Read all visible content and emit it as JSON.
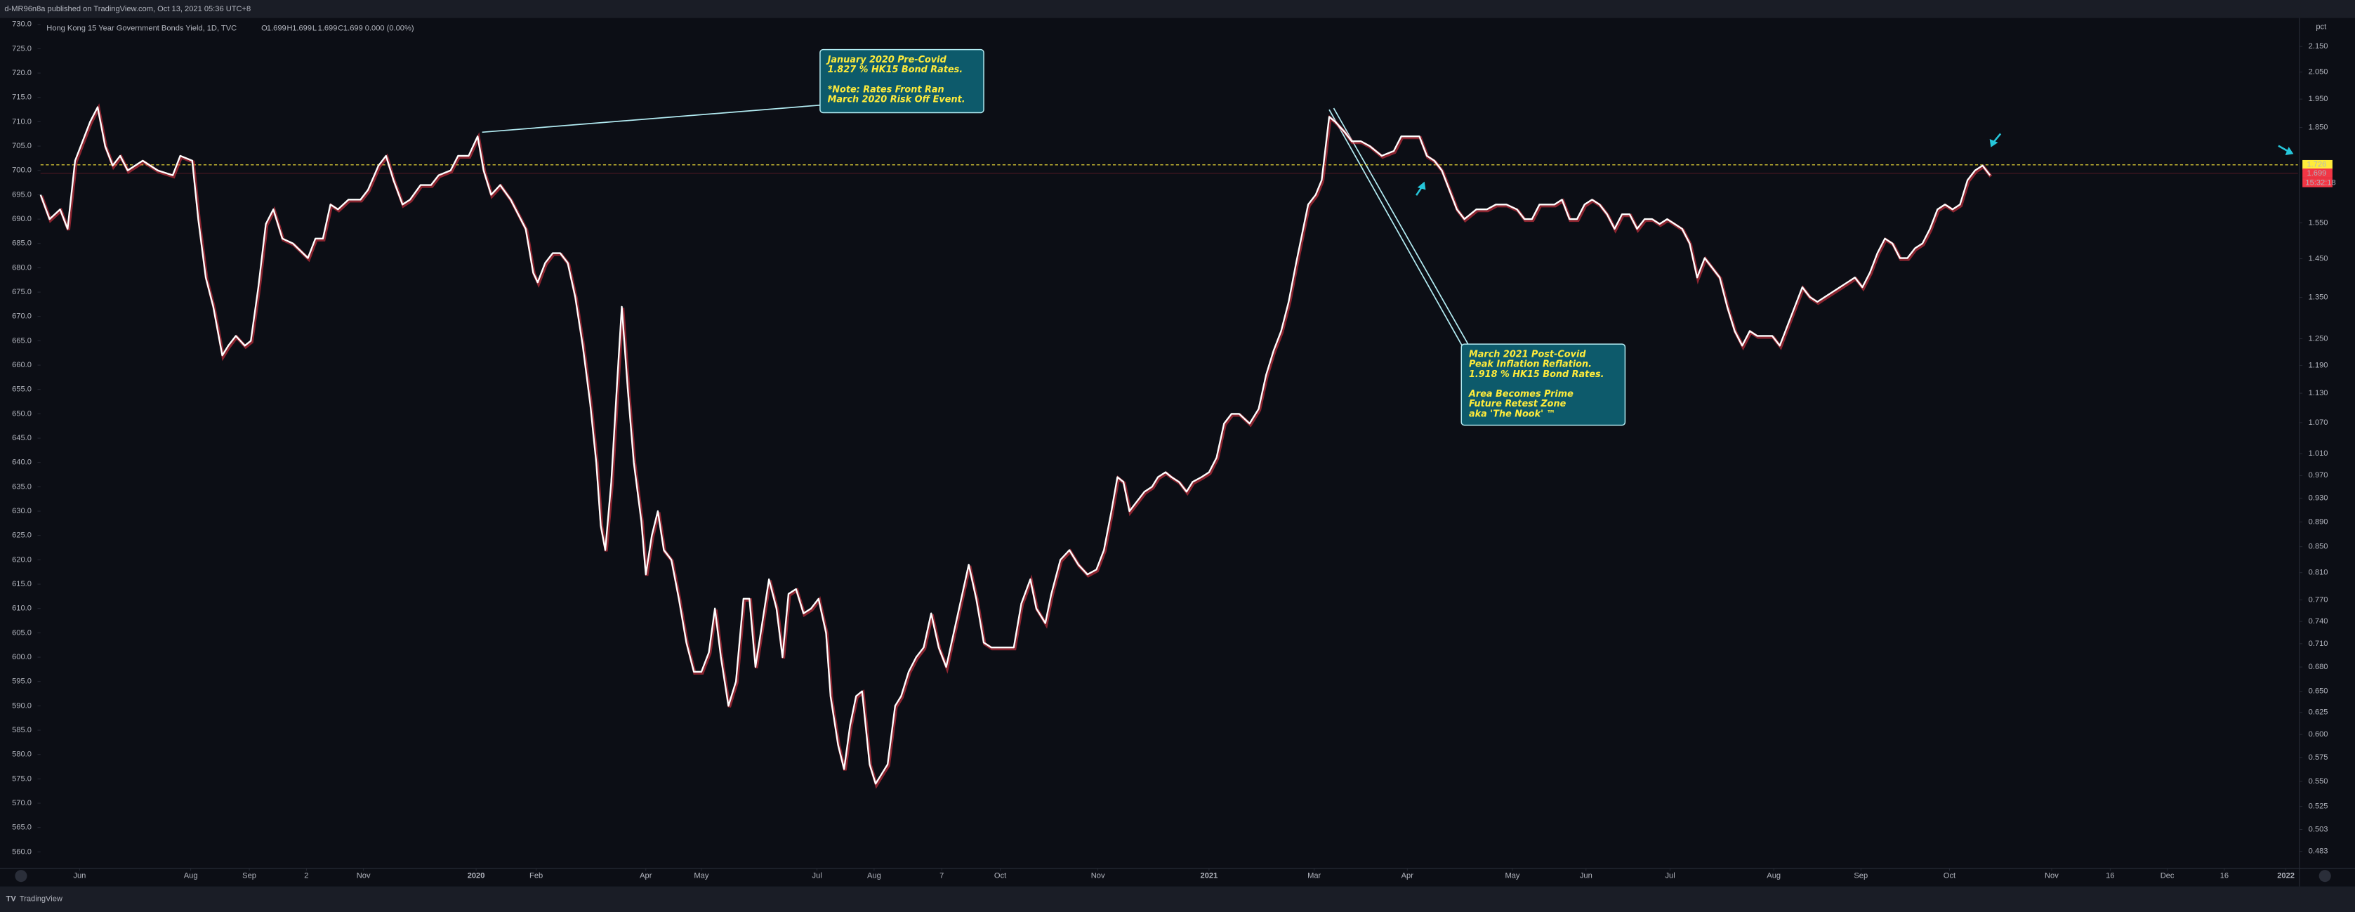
{
  "published": "d-MR96n8a published on TradingView.com, Oct 13, 2021 05:36 UTC+8",
  "footer": "TradingView",
  "chart_data": {
    "type": "line",
    "title": "Hong Kong 15 Year Government Bonds Yield, 1D, TVC",
    "ohlc": [
      {
        "label": "O",
        "value": 1.699
      },
      {
        "label": "H",
        "value": 1.699
      },
      {
        "label": "L",
        "value": 1.699
      },
      {
        "label": "C",
        "value": 1.699
      }
    ],
    "change": "0.000 (0.00%)",
    "color": "#ffffff",
    "x": [
      0,
      6,
      13,
      18,
      23,
      28,
      33,
      38,
      43,
      48,
      53,
      58,
      68,
      78,
      88,
      93,
      101,
      105,
      110,
      115,
      121,
      125,
      130,
      136,
      140,
      145,
      150,
      155,
      161,
      168,
      178,
      183,
      188,
      193,
      198,
      205,
      213,
      218,
      225,
      230,
      235,
      241,
      246,
      253,
      260,
      265,
      273,
      278,
      285,
      291,
      295,
      300,
      306,
      313,
      318,
      323,
      328,
      331,
      336,
      341,
      346,
      351,
      356,
      361,
      366,
      370,
      373,
      376,
      380,
      384,
      387,
      391,
      395,
      400,
      403,
      407,
      411,
      415,
      420,
      425,
      430,
      435,
      440,
      445,
      449,
      453,
      458,
      463,
      468,
      472,
      476,
      480,
      485,
      490,
      494,
      498,
      503,
      508,
      513,
      518,
      523,
      526,
      531,
      535,
      539,
      543,
      547,
      552,
      556,
      560,
      564,
      569,
      573,
      578,
      583,
      588,
      593,
      598,
      603,
      608,
      613,
      618,
      623,
      628,
      633,
      641,
      648,
      653,
      659,
      663,
      669,
      673,
      679,
      685,
      691,
      697,
      703,
      708,
      713,
      717,
      721,
      725,
      730,
      735,
      740,
      744,
      749,
      753,
      758,
      763,
      767,
      773,
      778,
      783,
      788,
      793,
      798,
      805,
      811,
      816,
      821,
      826,
      831,
      836,
      840,
      844,
      849,
      853,
      858,
      862,
      868,
      873,
      879,
      885,
      893,
      901,
      906,
      913,
      918,
      923,
      928,
      933,
      938,
      943,
      948,
      956,
      963,
      969,
      976,
      983,
      988,
      993,
      998,
      1003,
      1008,
      1013,
      1018,
      1023,
      1028,
      1033,
      1038,
      1043,
      1048,
      1053,
      1058,
      1063,
      1068,
      1073,
      1078,
      1083,
      1088,
      1093,
      1098,
      1103,
      1108,
      1113,
      1118,
      1123,
      1128,
      1133,
      1138,
      1143,
      1148,
      1153,
      1158,
      1163,
      1168,
      1173,
      1178,
      1183,
      1188,
      1193,
      1198,
      1203,
      1208,
      1213,
      1218,
      1223,
      1228,
      1233,
      1238,
      1243,
      1248,
      1253,
      1258,
      1263,
      1268,
      1273,
      1278,
      1283,
      1288,
      1293,
      1298
    ],
    "values": [
      695,
      690,
      692,
      688,
      702,
      706,
      710,
      713,
      705,
      701,
      703,
      700,
      702,
      700,
      699,
      703,
      702,
      690,
      678,
      672,
      662,
      664,
      666,
      664,
      665,
      676,
      689,
      692,
      686,
      685,
      682,
      686,
      686,
      693,
      692,
      694,
      694,
      696,
      701,
      703,
      698,
      693,
      694,
      697,
      697,
      699,
      700,
      703,
      703,
      707,
      700,
      695,
      697,
      694,
      691,
      688,
      679,
      677,
      681,
      683,
      683,
      681,
      674,
      664,
      652,
      640,
      627,
      622,
      636,
      657,
      672,
      655,
      640,
      628,
      617,
      625,
      630,
      622,
      620,
      612,
      603,
      597,
      597,
      601,
      610,
      600,
      590,
      595,
      612,
      612,
      598,
      606,
      616,
      610,
      600,
      613,
      614,
      609,
      610,
      612,
      605,
      592,
      582,
      577,
      586,
      592,
      593,
      578,
      574,
      576,
      578,
      590,
      592,
      597,
      600,
      602,
      609,
      602,
      598,
      605,
      612,
      619,
      612,
      603,
      602,
      602,
      602,
      611,
      616,
      610,
      607,
      613,
      620,
      622,
      619,
      617,
      618,
      622,
      630,
      637,
      636,
      630,
      632,
      634,
      635,
      637,
      638,
      637,
      636,
      634,
      636,
      637,
      638,
      641,
      648,
      650,
      650,
      648,
      651,
      658,
      663,
      667,
      673,
      681,
      687,
      693,
      695,
      698,
      711,
      710,
      708,
      706,
      706,
      705,
      703,
      704,
      707,
      707,
      707,
      703,
      702,
      700,
      696,
      692,
      690,
      692,
      692,
      693,
      693,
      692,
      690,
      690,
      693,
      693,
      693,
      694,
      690,
      690,
      693,
      694,
      693,
      691,
      688,
      691,
      691,
      688,
      690,
      690,
      689,
      690,
      689,
      688,
      685,
      678,
      682,
      680,
      678,
      672,
      667,
      664,
      667,
      666,
      666,
      666,
      664,
      668,
      672,
      676,
      674,
      673,
      674,
      675,
      676,
      677,
      678,
      676,
      679,
      683,
      686,
      685,
      682,
      682,
      684,
      685,
      688,
      692,
      693,
      692,
      693,
      698,
      700,
      701,
      699
    ],
    "xlim": [
      0,
      1503
    ],
    "xticks": [
      {
        "value": 26,
        "label": "Jun"
      },
      {
        "value": 100,
        "label": "Aug"
      },
      {
        "value": 139,
        "label": "Sep"
      },
      {
        "value": 177,
        "label": "2"
      },
      {
        "value": 215,
        "label": "Nov"
      },
      {
        "value": 290,
        "label": "2020"
      },
      {
        "value": 330,
        "label": "Feb"
      },
      {
        "value": 403,
        "label": "Apr"
      },
      {
        "value": 440,
        "label": "May"
      },
      {
        "value": 517,
        "label": "Jul"
      },
      {
        "value": 555,
        "label": "Aug"
      },
      {
        "value": 600,
        "label": "7"
      },
      {
        "value": 639,
        "label": "Oct"
      },
      {
        "value": 704,
        "label": "Nov"
      },
      {
        "value": 778,
        "label": "2021"
      },
      {
        "value": 848,
        "label": "Mar"
      },
      {
        "value": 910,
        "label": "Apr"
      },
      {
        "value": 980,
        "label": "May"
      },
      {
        "value": 1029,
        "label": "Jun"
      },
      {
        "value": 1085,
        "label": "Jul"
      },
      {
        "value": 1154,
        "label": "Aug"
      },
      {
        "value": 1212,
        "label": "Sep"
      },
      {
        "value": 1271,
        "label": "Oct"
      },
      {
        "value": 1339,
        "label": "Nov"
      },
      {
        "value": 1378,
        "label": "16"
      },
      {
        "value": 1416,
        "label": "Dec"
      },
      {
        "value": 1454,
        "label": "16"
      },
      {
        "value": 1495,
        "label": "2022"
      }
    ],
    "ylim": [
      556.6,
      731
    ],
    "yticks": [
      {
        "value": 730,
        "label": "730.0"
      },
      {
        "value": 725,
        "label": "725.0"
      },
      {
        "value": 720,
        "label": "720.0"
      },
      {
        "value": 715,
        "label": "715.0"
      },
      {
        "value": 710,
        "label": "710.0"
      },
      {
        "value": 705,
        "label": "705.0"
      },
      {
        "value": 700,
        "label": "700.0"
      },
      {
        "value": 695,
        "label": "695.0"
      },
      {
        "value": 690,
        "label": "690.0"
      },
      {
        "value": 685,
        "label": "685.0"
      },
      {
        "value": 680,
        "label": "680.0"
      },
      {
        "value": 675,
        "label": "675.0"
      },
      {
        "value": 670,
        "label": "670.0"
      },
      {
        "value": 665,
        "label": "665.0"
      },
      {
        "value": 660,
        "label": "660.0"
      },
      {
        "value": 655,
        "label": "655.0"
      },
      {
        "value": 650,
        "label": "650.0"
      },
      {
        "value": 645,
        "label": "645.0"
      },
      {
        "value": 640,
        "label": "640.0"
      },
      {
        "value": 635,
        "label": "635.0"
      },
      {
        "value": 630,
        "label": "630.0"
      },
      {
        "value": 625,
        "label": "625.0"
      },
      {
        "value": 620,
        "label": "620.0"
      },
      {
        "value": 615,
        "label": "615.0"
      },
      {
        "value": 610,
        "label": "610.0"
      },
      {
        "value": 605,
        "label": "605.0"
      },
      {
        "value": 600,
        "label": "600.0"
      },
      {
        "value": 595,
        "label": "595.0"
      },
      {
        "value": 590,
        "label": "590.0"
      },
      {
        "value": 585,
        "label": "585.0"
      },
      {
        "value": 580,
        "label": "580.0"
      },
      {
        "value": 575,
        "label": "575.0"
      },
      {
        "value": 570,
        "label": "570.0"
      },
      {
        "value": 565,
        "label": "565.0"
      },
      {
        "value": 560,
        "label": "560.0"
      }
    ],
    "y2label": "pct",
    "y2log": true,
    "y2lim": [
      0.468,
      2.26
    ],
    "y2ticks": [
      {
        "value": 2.15,
        "label": "2.150"
      },
      {
        "value": 2.05,
        "label": "2.050"
      },
      {
        "value": 1.95,
        "label": "1.950"
      },
      {
        "value": 1.85,
        "label": "1.850"
      },
      {
        "value": 1.55,
        "label": "1.550"
      },
      {
        "value": 1.45,
        "label": "1.450"
      },
      {
        "value": 1.35,
        "label": "1.350"
      },
      {
        "value": 1.25,
        "label": "1.250"
      },
      {
        "value": 1.19,
        "label": "1.190"
      },
      {
        "value": 1.13,
        "label": "1.130"
      },
      {
        "value": 1.07,
        "label": "1.070"
      },
      {
        "value": 1.01,
        "label": "1.010"
      },
      {
        "value": 0.97,
        "label": "0.970"
      },
      {
        "value": 0.93,
        "label": "0.930"
      },
      {
        "value": 0.89,
        "label": "0.890"
      },
      {
        "value": 0.85,
        "label": "0.850"
      },
      {
        "value": 0.81,
        "label": "0.810"
      },
      {
        "value": 0.77,
        "label": "0.770"
      },
      {
        "value": 0.74,
        "label": "0.740"
      },
      {
        "value": 0.71,
        "label": "0.710"
      },
      {
        "value": 0.68,
        "label": "0.680"
      },
      {
        "value": 0.65,
        "label": "0.650"
      },
      {
        "value": 0.625,
        "label": "0.625"
      },
      {
        "value": 0.6,
        "label": "0.600"
      },
      {
        "value": 0.575,
        "label": "0.575"
      },
      {
        "value": 0.55,
        "label": "0.550"
      },
      {
        "value": 0.525,
        "label": "0.525"
      },
      {
        "value": 0.503,
        "label": "0.503"
      },
      {
        "value": 0.483,
        "label": "0.483"
      }
    ],
    "price_labels": [
      {
        "value": 1.726,
        "label": "1.726",
        "color": "#ffeb3b"
      },
      {
        "value": 1.699,
        "label": "1.699",
        "color": "#f23645"
      }
    ],
    "countdown": "15:32:18",
    "annotations": [
      {
        "paragraphs": [
          [
            "January 2020 Pre-Covid",
            "1.827 % HK15 Bond Rates."
          ],
          [
            "*Note: Rates Front Ran",
            "March 2020 Risk Off Event."
          ]
        ]
      },
      {
        "paragraphs": [
          [
            "March 2021 Post-Covid",
            "Peak Inflation Reflation.",
            "1.918 % HK15 Bond Rates."
          ],
          [
            "Area Becomes Prime",
            "Future Retest Zone",
            "aka 'The Nook' ™"
          ]
        ]
      }
    ]
  }
}
